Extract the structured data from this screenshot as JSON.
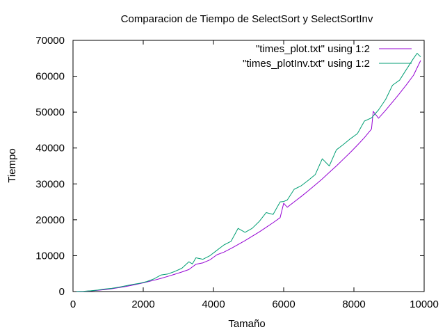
{
  "chart_data": {
    "type": "line",
    "title": "Comparacion de Tiempo de SelectSort y SelectSortInv",
    "xlabel": "Tamaño",
    "ylabel": "Tiempo",
    "xlim": [
      0,
      10000
    ],
    "ylim": [
      0,
      70000
    ],
    "xticks": [
      0,
      2000,
      4000,
      6000,
      8000,
      10000
    ],
    "yticks": [
      0,
      10000,
      20000,
      30000,
      40000,
      50000,
      60000,
      70000
    ],
    "grid": false,
    "legend_position": "top-right",
    "series": [
      {
        "name": "\"times_plot.txt\" using 1:2",
        "color": "#9400d3",
        "x": [
          100,
          300,
          500,
          700,
          900,
          1100,
          1300,
          1500,
          1700,
          1900,
          2100,
          2300,
          2500,
          2700,
          2900,
          3100,
          3300,
          3500,
          3700,
          3900,
          4100,
          4300,
          4500,
          4700,
          4900,
          5100,
          5300,
          5500,
          5700,
          5900,
          6000,
          6100,
          6300,
          6500,
          6700,
          6900,
          7100,
          7300,
          7500,
          7700,
          7900,
          8100,
          8300,
          8500,
          8550,
          8700,
          8900,
          9100,
          9300,
          9500,
          9700,
          9900
        ],
        "y": [
          20,
          60,
          170,
          330,
          520,
          780,
          1080,
          1420,
          1790,
          2220,
          2660,
          3140,
          3660,
          4230,
          4820,
          5450,
          6120,
          7610,
          8000,
          8840,
          10250,
          11000,
          12000,
          13100,
          14200,
          15400,
          16600,
          17900,
          19200,
          20600,
          24600,
          23500,
          25000,
          26500,
          28100,
          29700,
          31400,
          33200,
          35000,
          36900,
          38800,
          40800,
          42900,
          45300,
          50200,
          48300,
          50500,
          52800,
          55200,
          57700,
          60300,
          64400
        ]
      },
      {
        "name": "\"times_plotInv.txt\" using 1:2",
        "color": "#009e73",
        "x": [
          100,
          300,
          500,
          700,
          900,
          1100,
          1300,
          1500,
          1700,
          1900,
          2100,
          2300,
          2500,
          2700,
          2900,
          3100,
          3300,
          3400,
          3500,
          3700,
          3900,
          4100,
          4300,
          4500,
          4700,
          4900,
          5100,
          5300,
          5500,
          5700,
          5900,
          6000,
          6100,
          6300,
          6500,
          6700,
          6900,
          7100,
          7300,
          7500,
          7700,
          7900,
          8100,
          8300,
          8500,
          8700,
          8900,
          9100,
          9300,
          9500,
          9700,
          9800,
          9900
        ],
        "y": [
          20,
          80,
          220,
          400,
          700,
          900,
          1200,
          1600,
          2000,
          2300,
          2800,
          3500,
          4600,
          4900,
          5600,
          6500,
          8300,
          7700,
          9400,
          9000,
          10000,
          11500,
          13000,
          14000,
          17600,
          16500,
          17600,
          19500,
          22000,
          21500,
          25000,
          25100,
          25500,
          28500,
          29500,
          31000,
          32600,
          37000,
          35000,
          39500,
          41000,
          42600,
          44000,
          47500,
          48400,
          50600,
          53500,
          57500,
          58900,
          62000,
          65000,
          66400,
          65400
        ]
      }
    ]
  }
}
